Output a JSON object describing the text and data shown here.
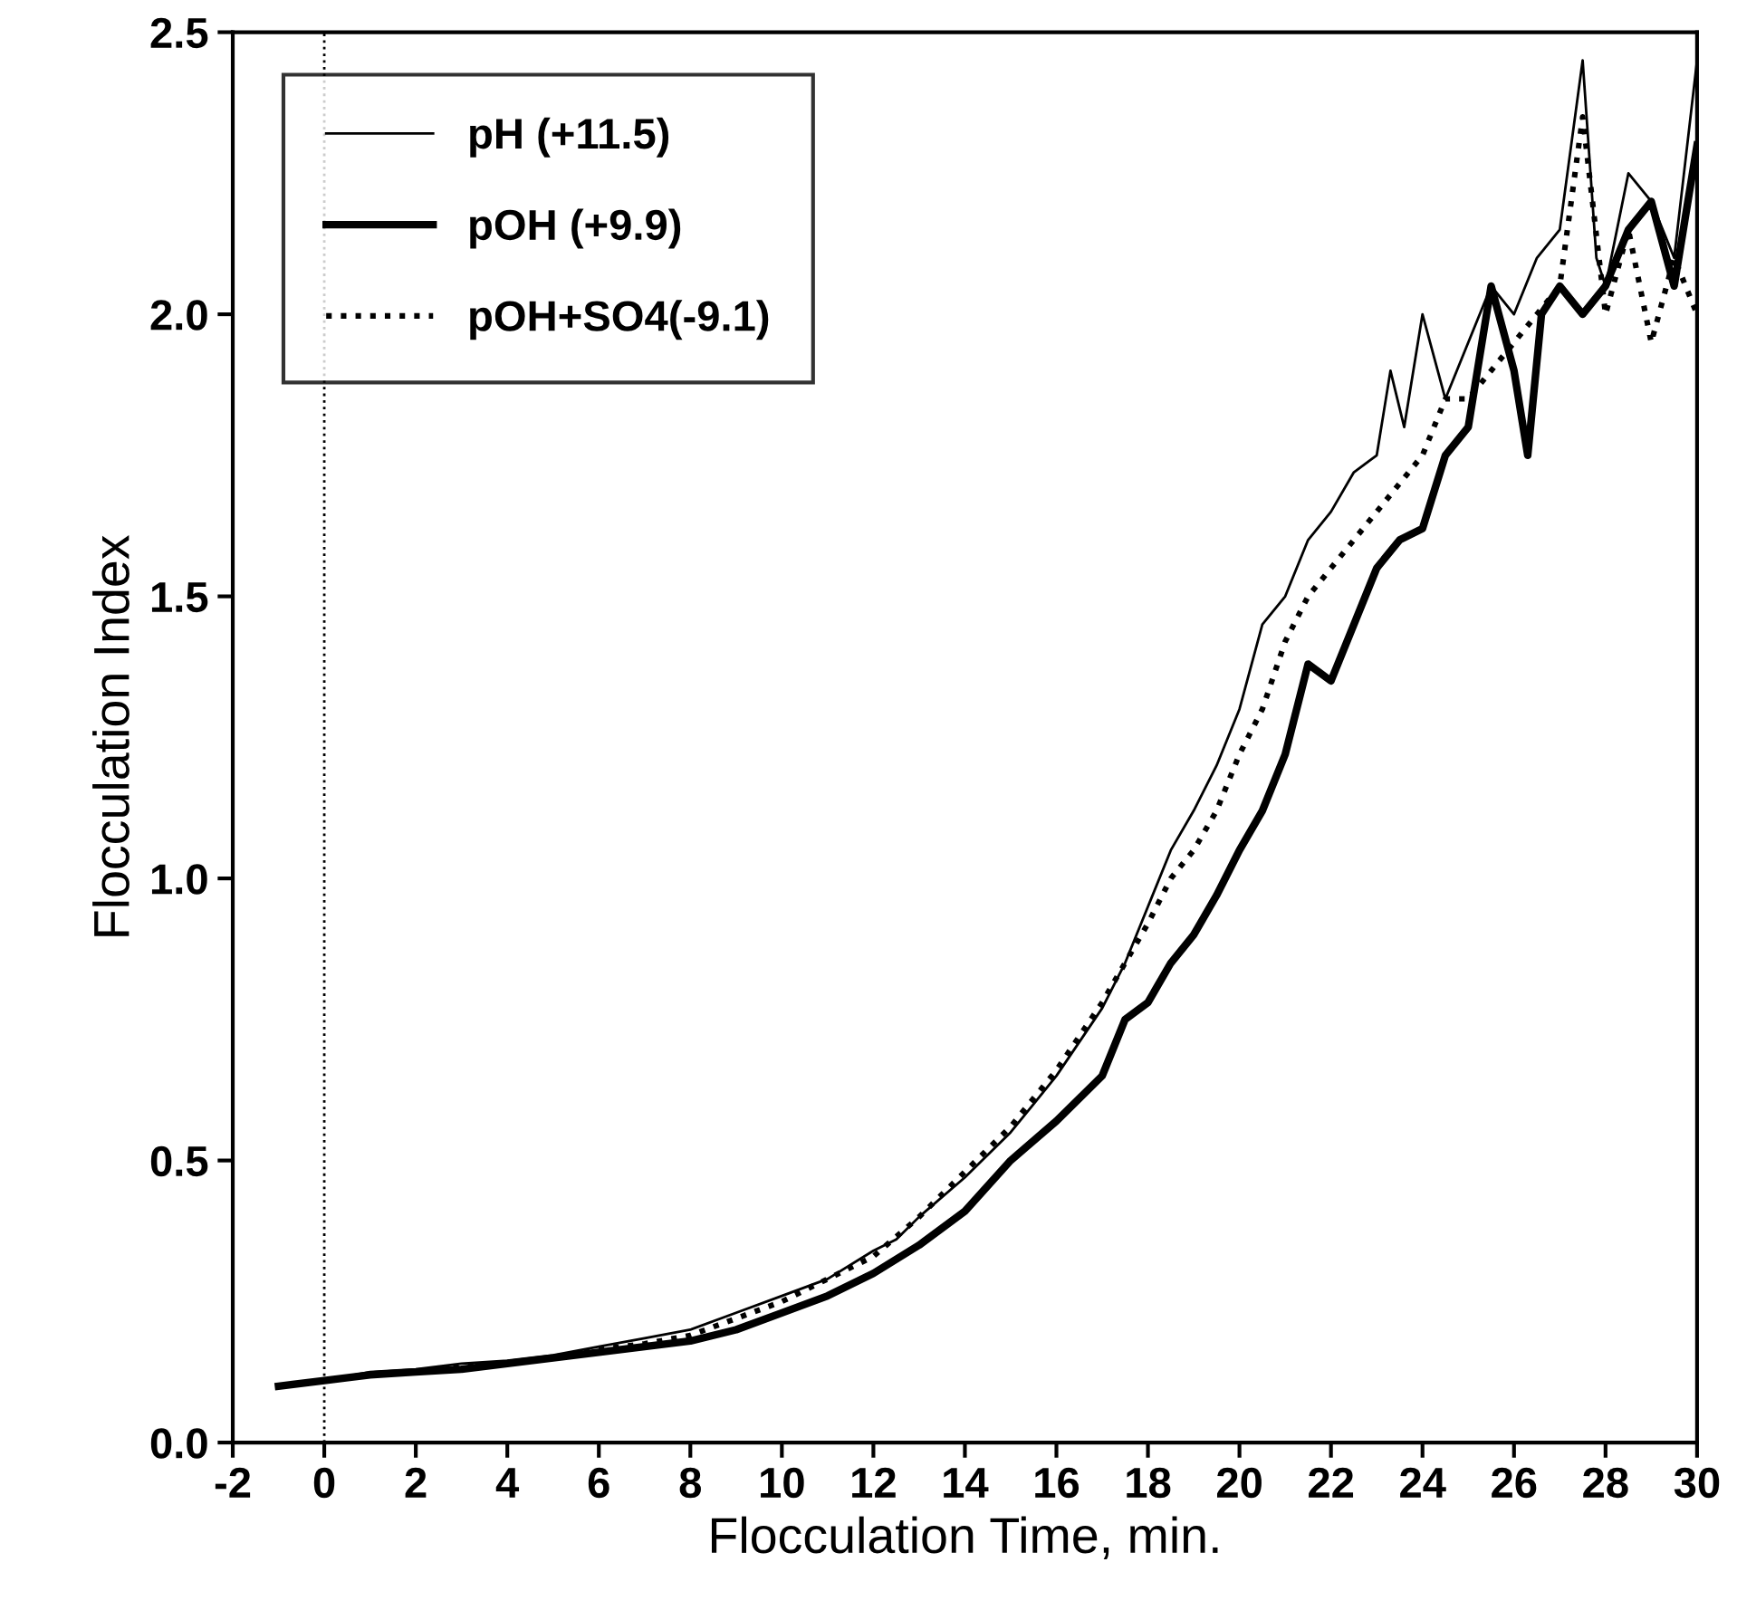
{
  "chart_data": {
    "type": "line",
    "xlabel": "Flocculation Time, min.",
    "ylabel": "Flocculation Index",
    "xlim": [
      -2,
      30
    ],
    "xticks": [
      -2,
      0,
      2,
      4,
      6,
      8,
      10,
      12,
      14,
      16,
      18,
      20,
      22,
      24,
      26,
      28,
      30
    ],
    "ylim": [
      0,
      2.5
    ],
    "yticks": [
      {
        "value": 0,
        "label": "0.0"
      },
      0.5,
      {
        "value": 1,
        "label": "1.0"
      },
      1.5,
      {
        "value": 2,
        "label": "2.0"
      },
      2.5
    ],
    "grid": false,
    "legend": "top left",
    "ref_lines": [
      {
        "axis": "x",
        "value": 0,
        "line_style": "dotted",
        "color": "#000000"
      }
    ],
    "series": [
      {
        "name": "pH (+11.5)",
        "color": "#000000",
        "line_style": "solid",
        "x": [
          -1,
          0,
          1,
          2,
          3,
          4,
          5,
          6,
          7,
          8,
          9,
          10,
          11,
          12,
          12.5,
          13,
          14,
          15,
          15.5,
          16,
          17,
          17.5,
          18,
          18.5,
          19,
          19.5,
          20,
          20.5,
          21,
          21.5,
          22,
          22.5,
          23,
          23.3,
          23.6,
          24,
          24.5,
          25,
          25.5,
          26,
          26.5,
          27,
          27.5,
          27.8,
          28,
          28.5,
          29,
          29.5,
          30
        ],
        "values": [
          0.1,
          0.11,
          0.125,
          0.13,
          0.14,
          0.145,
          0.155,
          0.17,
          0.185,
          0.2,
          0.23,
          0.26,
          0.29,
          0.34,
          0.36,
          0.4,
          0.47,
          0.55,
          0.6,
          0.65,
          0.77,
          0.85,
          0.95,
          1.05,
          1.12,
          1.2,
          1.3,
          1.45,
          1.5,
          1.6,
          1.65,
          1.72,
          1.75,
          1.9,
          1.8,
          2.0,
          1.85,
          1.95,
          2.05,
          2.0,
          2.1,
          2.15,
          2.45,
          2.1,
          2.05,
          2.25,
          2.2,
          2.1,
          2.45
        ]
      },
      {
        "name": "pOH (+9.9)",
        "color": "#000000",
        "line_style": "solid",
        "x": [
          -1,
          0,
          1,
          2,
          3,
          4,
          5,
          6,
          7,
          8,
          9,
          10,
          11,
          12,
          13,
          14,
          15,
          16,
          17,
          17.5,
          18,
          18.5,
          19,
          19.5,
          20,
          20.5,
          21,
          21.5,
          22,
          22.5,
          23,
          23.5,
          24,
          24.5,
          25,
          25.5,
          26,
          26.3,
          26.6,
          27,
          27.5,
          28,
          28.5,
          29,
          29.5,
          30
        ],
        "values": [
          0.1,
          0.11,
          0.12,
          0.125,
          0.13,
          0.14,
          0.15,
          0.16,
          0.17,
          0.18,
          0.2,
          0.23,
          0.26,
          0.3,
          0.35,
          0.41,
          0.5,
          0.57,
          0.65,
          0.75,
          0.78,
          0.85,
          0.9,
          0.97,
          1.05,
          1.12,
          1.22,
          1.38,
          1.35,
          1.45,
          1.55,
          1.6,
          1.62,
          1.75,
          1.8,
          2.05,
          1.9,
          1.75,
          2.0,
          2.05,
          2.0,
          2.05,
          2.15,
          2.2,
          2.05,
          2.3
        ]
      },
      {
        "name": "pOH+SO4(-9.1)",
        "color": "#000000",
        "line_style": "dotted",
        "x": [
          -1,
          0,
          1,
          2,
          3,
          4,
          5,
          6,
          7,
          8,
          9,
          10,
          11,
          12,
          13,
          14,
          15,
          16,
          17,
          18,
          18.5,
          19,
          19.5,
          20,
          20.5,
          21,
          21.5,
          22,
          22.5,
          23,
          23.5,
          24,
          24.5,
          25,
          25.5,
          26,
          26.5,
          27,
          27.5,
          28,
          28.5,
          29,
          29.5,
          30
        ],
        "values": [
          0.1,
          0.11,
          0.12,
          0.125,
          0.135,
          0.14,
          0.15,
          0.165,
          0.175,
          0.19,
          0.22,
          0.25,
          0.29,
          0.33,
          0.4,
          0.48,
          0.56,
          0.66,
          0.78,
          0.92,
          1.0,
          1.05,
          1.12,
          1.22,
          1.3,
          1.42,
          1.5,
          1.55,
          1.6,
          1.65,
          1.7,
          1.75,
          1.85,
          1.85,
          1.9,
          1.95,
          2.0,
          2.05,
          2.35,
          2.0,
          2.15,
          1.95,
          2.1,
          2.0
        ]
      }
    ]
  }
}
